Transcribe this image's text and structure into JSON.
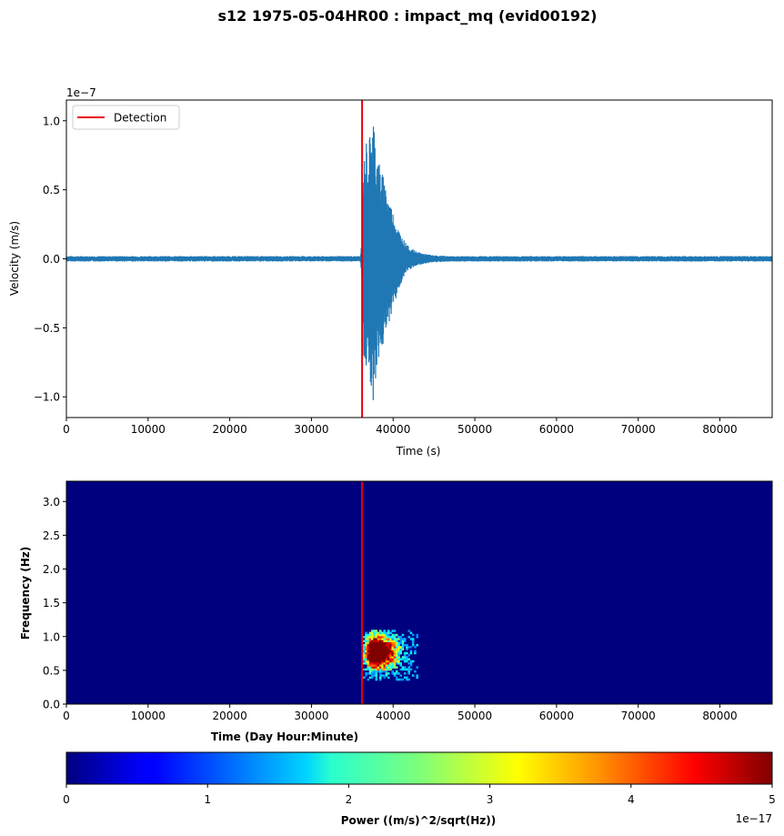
{
  "figure": {
    "title": "s12 1975-05-04HR00 : impact_mq (evid00192)"
  },
  "chart_data": [
    {
      "type": "line",
      "title": "",
      "xlabel": "Time (s)",
      "ylabel": "Velocity (m/s)",
      "y_offset_label": "1e−7",
      "xlim": [
        0,
        86400
      ],
      "ylim": [
        -1.15,
        1.15
      ],
      "y_scale_exponent": -7,
      "x_ticks": [
        0,
        10000,
        20000,
        30000,
        40000,
        50000,
        60000,
        70000,
        80000
      ],
      "x_tick_labels": [
        "0",
        "10000",
        "20000",
        "30000",
        "40000",
        "50000",
        "60000",
        "70000",
        "80000"
      ],
      "y_ticks": [
        -1.0,
        -0.5,
        0.0,
        0.5,
        1.0
      ],
      "y_tick_labels": [
        "−1.0",
        "−0.5",
        "0.0",
        "0.5",
        "1.0"
      ],
      "grid": false,
      "legend": {
        "placement": "upper-left",
        "entries": [
          {
            "label": "Detection",
            "color": "#e8000b"
          }
        ]
      },
      "detection_time": 36200,
      "series": [
        {
          "color": "#1f77b4",
          "x": [
            0,
            36000,
            36200,
            36400,
            36700,
            37000,
            37300,
            37600,
            38000,
            38500,
            39000,
            39500,
            40000,
            40500,
            41000,
            41500,
            42000,
            43000,
            44000,
            45000,
            47000,
            86400
          ],
          "y_upper": [
            0.02,
            0.02,
            0.15,
            0.72,
            0.86,
            0.84,
            0.98,
            1.04,
            0.78,
            0.66,
            0.56,
            0.44,
            0.34,
            0.24,
            0.17,
            0.12,
            0.08,
            0.05,
            0.035,
            0.025,
            0.02,
            0.02
          ],
          "y_lower": [
            -0.02,
            -0.02,
            -0.2,
            -0.72,
            -0.8,
            -0.75,
            -0.95,
            -1.04,
            -0.8,
            -0.68,
            -0.6,
            -0.46,
            -0.36,
            -0.26,
            -0.18,
            -0.12,
            -0.08,
            -0.05,
            -0.035,
            -0.025,
            -0.02,
            -0.02
          ]
        }
      ]
    },
    {
      "type": "heatmap",
      "title": "",
      "xlabel": "Time (Day Hour:Minute)",
      "ylabel": "Frequency (Hz)",
      "xlim": [
        0,
        86400
      ],
      "ylim": [
        0,
        3.3
      ],
      "x_ticks": [
        0,
        10000,
        20000,
        30000,
        40000,
        50000,
        60000,
        70000,
        80000
      ],
      "x_tick_labels": [
        "0",
        "10000",
        "20000",
        "30000",
        "40000",
        "50000",
        "60000",
        "70000",
        "80000"
      ],
      "y_ticks": [
        0.0,
        0.5,
        1.0,
        1.5,
        2.0,
        2.5,
        3.0
      ],
      "y_tick_labels": [
        "0.0",
        "0.5",
        "1.0",
        "1.5",
        "2.0",
        "2.5",
        "3.0"
      ],
      "background_color": "#00007f",
      "detection_time": 36200,
      "detection_color": "#e8000b",
      "hotspot": {
        "time_range": [
          36300,
          43000
        ],
        "freq_range": [
          0.35,
          1.1
        ],
        "peak_time": 37500,
        "peak_freq": 0.75
      },
      "colorbar": {
        "label": "Power ((m/s)^2/sqrt(Hz))",
        "offset_label": "1e−17",
        "range": [
          0,
          5
        ],
        "ticks": [
          0,
          1,
          2,
          3,
          4,
          5
        ],
        "tick_labels": [
          "0",
          "1",
          "2",
          "3",
          "4",
          "5"
        ],
        "colormap": "jet"
      }
    }
  ]
}
